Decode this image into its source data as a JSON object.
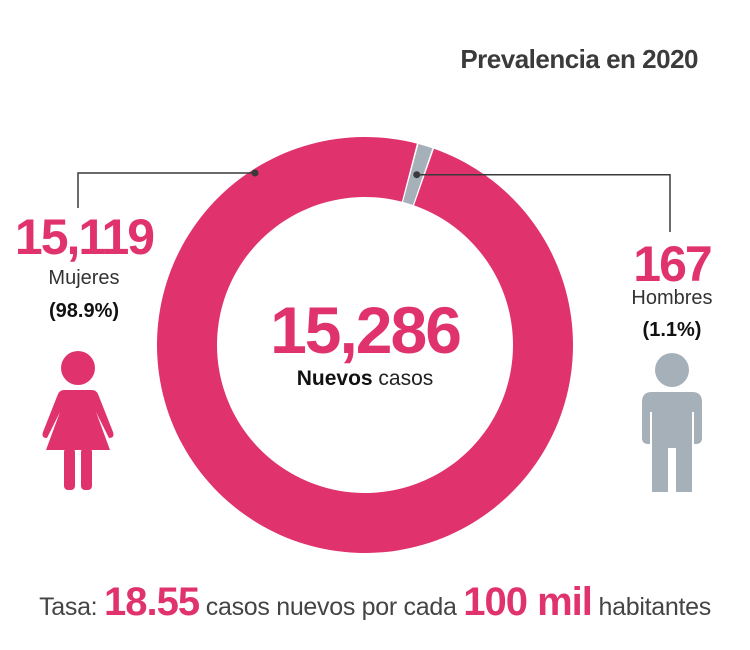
{
  "title": "Prevalencia en 2020",
  "center": {
    "value": "15,286",
    "label_bold": "Nuevos",
    "label_rest": "casos"
  },
  "mujeres": {
    "count": "15,119",
    "label": "Mujeres",
    "percent": "(98.9%)"
  },
  "hombres": {
    "count": "167",
    "label": "Hombres",
    "percent": "(1.1%)"
  },
  "footer": {
    "prefix": "Tasa:",
    "rate": "18.55",
    "middle": "casos nuevos por cada",
    "base": "100 mil",
    "suffix": "habitantes"
  },
  "colors": {
    "mujeres": "#e0336e",
    "hombres": "#a5b0b9",
    "line": "#3a3a3a"
  },
  "chart_data": {
    "type": "pie",
    "title": "Prevalencia en 2020",
    "total": 15286,
    "categories": [
      "Mujeres",
      "Hombres"
    ],
    "values": [
      15119,
      167
    ],
    "percentages": [
      98.9,
      1.1
    ]
  }
}
